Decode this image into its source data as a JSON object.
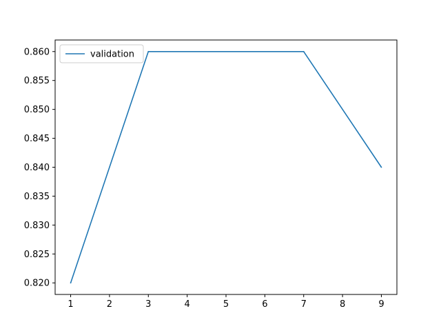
{
  "chart_data": {
    "type": "line",
    "title": "",
    "xlabel": "",
    "ylabel": "",
    "x": [
      1,
      3,
      7,
      9
    ],
    "xticks": [
      1,
      2,
      3,
      4,
      5,
      6,
      7,
      8,
      9
    ],
    "yticks": [
      0.82,
      0.825,
      0.83,
      0.835,
      0.84,
      0.845,
      0.85,
      0.855,
      0.86
    ],
    "ytick_labels": [
      "0.820",
      "0.825",
      "0.830",
      "0.835",
      "0.840",
      "0.845",
      "0.850",
      "0.855",
      "0.860"
    ],
    "xlim": [
      0.6,
      9.4
    ],
    "ylim": [
      0.818,
      0.862
    ],
    "grid": false,
    "legend": "top-left",
    "series": [
      {
        "name": "validation",
        "color": "#1f77b4",
        "values": [
          0.82,
          0.86,
          0.86,
          0.84
        ]
      }
    ]
  }
}
